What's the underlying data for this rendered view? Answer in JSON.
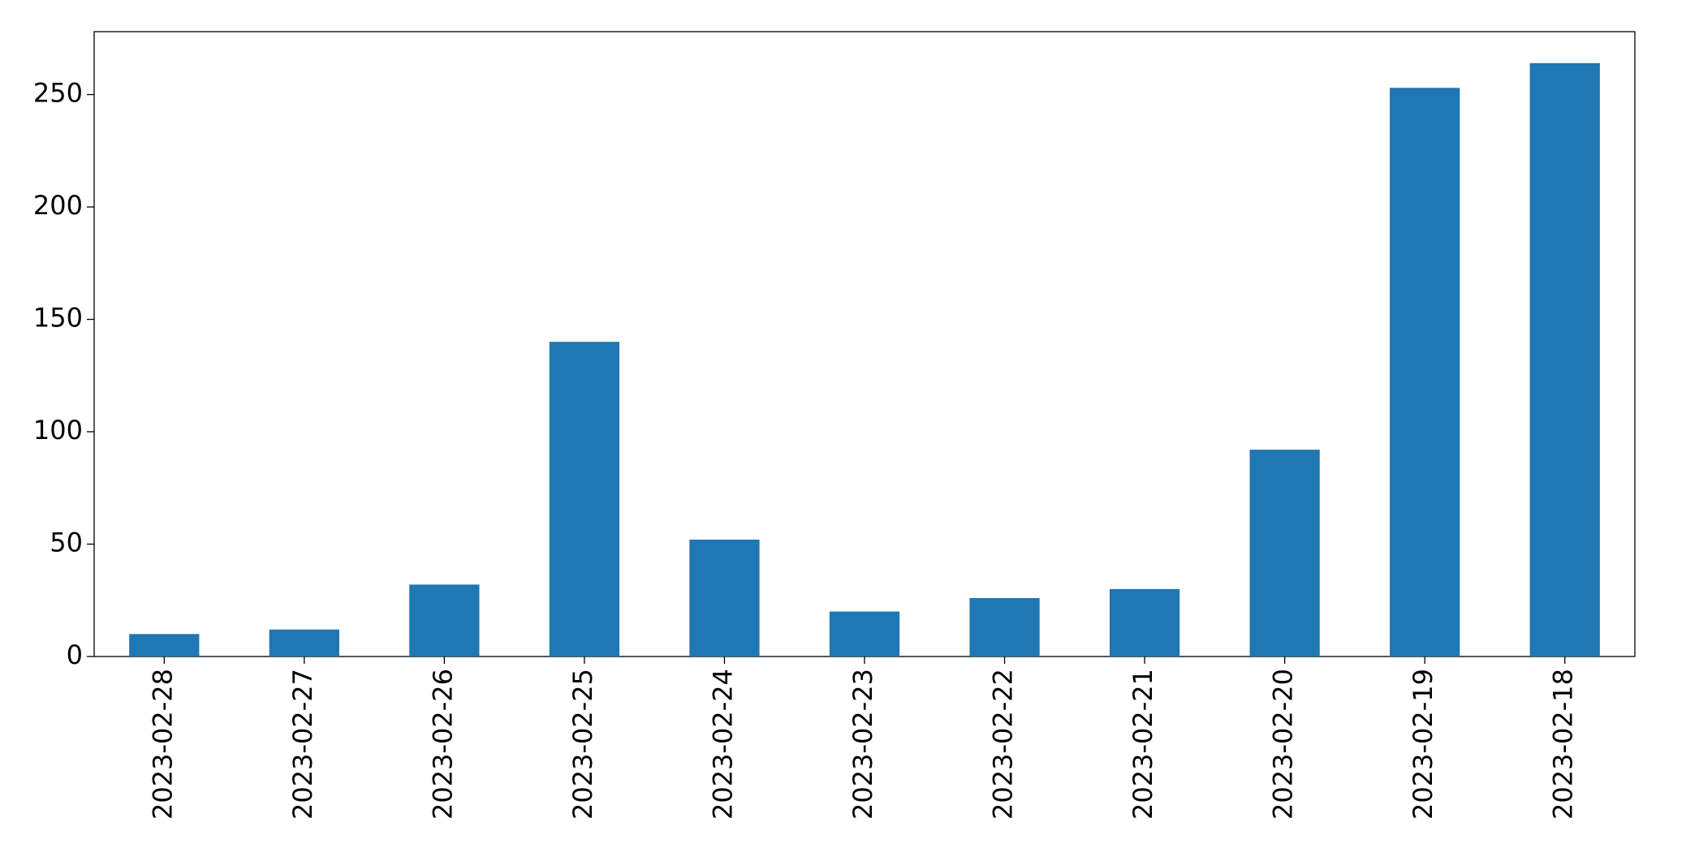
{
  "chart_data": {
    "type": "bar",
    "categories": [
      "2023-02-28",
      "2023-02-27",
      "2023-02-26",
      "2023-02-25",
      "2023-02-24",
      "2023-02-23",
      "2023-02-22",
      "2023-02-21",
      "2023-02-20",
      "2023-02-19",
      "2023-02-18"
    ],
    "values": [
      10,
      12,
      32,
      140,
      52,
      20,
      26,
      30,
      92,
      253,
      264
    ],
    "color": "#1f77b4",
    "ylim": [
      0,
      278
    ],
    "yticks": [
      0,
      50,
      100,
      150,
      200,
      250
    ],
    "grid": false
  }
}
